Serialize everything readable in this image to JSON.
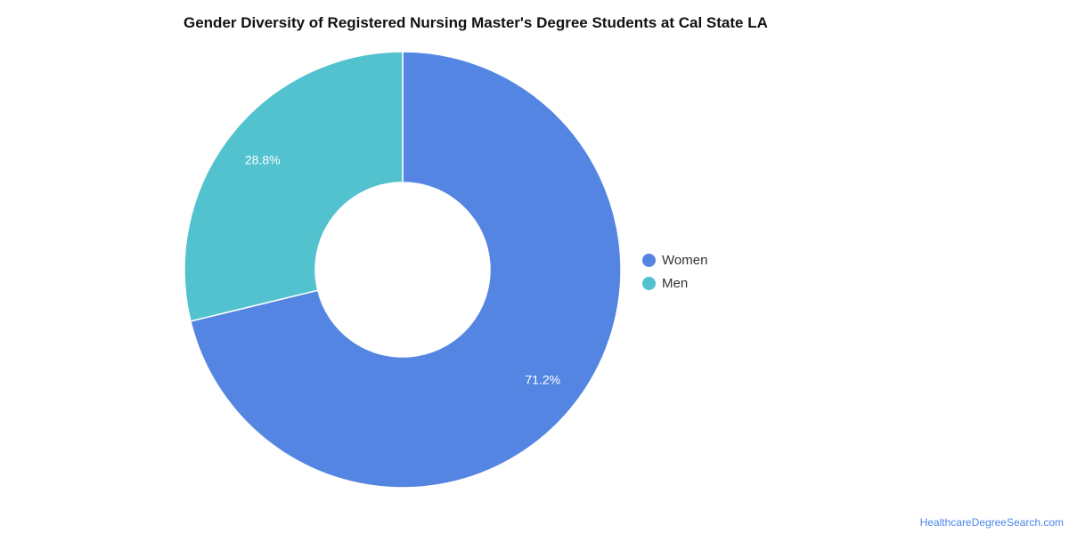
{
  "chart_data": {
    "type": "pie",
    "title": "Gender Diversity of Registered Nursing Master's Degree Students at Cal State LA",
    "categories": [
      "Women",
      "Men"
    ],
    "values": [
      71.2,
      28.8
    ],
    "value_labels": [
      "71.2%",
      "28.8%"
    ],
    "colors": [
      "#5485e2",
      "#52c2cf"
    ],
    "legend_position": "right",
    "donut": true
  },
  "source": {
    "text": "HealthcareDegreeSearch.com"
  }
}
